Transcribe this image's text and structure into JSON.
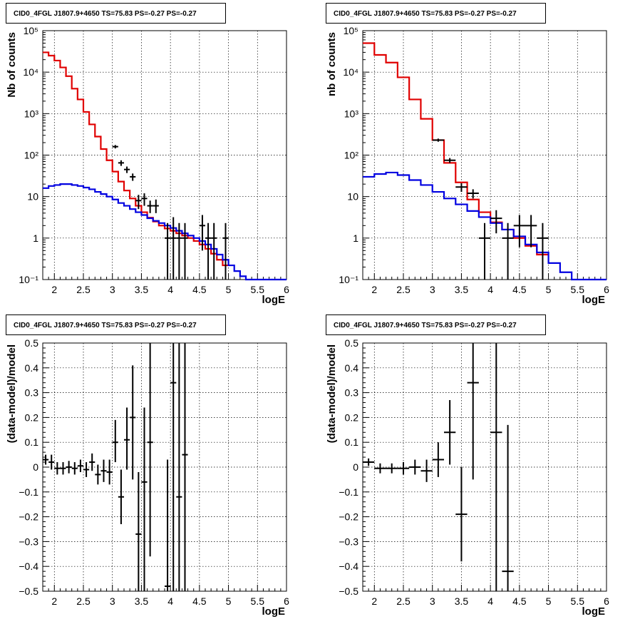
{
  "chart_data": [
    {
      "type": "step",
      "title": "CID0_4FGL J1807.9+4650 TS=75.83 PS=-0.27 PS=-0.27",
      "xlabel": "logE",
      "ylabel": "Nb of counts",
      "xlim": [
        1.8,
        6
      ],
      "ylim": [
        0.1,
        100000
      ],
      "yscale": "log",
      "grid": true,
      "x_ticks": [
        "2",
        "2.5",
        "3",
        "3.5",
        "4",
        "4.5",
        "5",
        "5.5",
        "6"
      ],
      "y_ticks": [
        "10⁻¹",
        "1",
        "10",
        "10²",
        "10³",
        "10⁴",
        "10⁵"
      ],
      "bin_width": 0.1,
      "series": [
        {
          "color": "#e00000",
          "bin_left": [
            1.8,
            1.9,
            2.0,
            2.1,
            2.2,
            2.3,
            2.4,
            2.5,
            2.6,
            2.7,
            2.8,
            2.9,
            3.0,
            3.1,
            3.2,
            3.3,
            3.4,
            3.5,
            3.6,
            3.7,
            3.8,
            3.9,
            4.0,
            4.1,
            4.2,
            4.3,
            4.4,
            4.5,
            4.6,
            4.7,
            4.8,
            4.9
          ],
          "values": [
            30000,
            25000,
            19000,
            13000,
            8000,
            4000,
            2200,
            1100,
            550,
            280,
            140,
            75,
            40,
            23,
            14,
            9,
            6,
            4.2,
            3.1,
            2.5,
            2.0,
            1.7,
            1.5,
            1.3,
            1.15,
            1.0,
            0.85,
            0.7,
            0.55,
            0.42,
            0.3,
            0.22
          ]
        },
        {
          "color": "#0000e0",
          "bin_left": [
            1.8,
            1.9,
            2.0,
            2.1,
            2.2,
            2.3,
            2.4,
            2.5,
            2.6,
            2.7,
            2.8,
            2.9,
            3.0,
            3.1,
            3.2,
            3.3,
            3.4,
            3.5,
            3.6,
            3.7,
            3.8,
            3.9,
            4.0,
            4.1,
            4.2,
            4.3,
            4.4,
            4.5,
            4.6,
            4.7,
            4.8,
            4.9,
            5.0,
            5.1,
            5.2,
            5.3,
            5.4,
            5.5,
            5.6,
            5.7,
            5.8,
            5.9
          ],
          "values": [
            16,
            18,
            19,
            20,
            20,
            19,
            18,
            16.5,
            15,
            13,
            11.5,
            10,
            8.5,
            7,
            6,
            5,
            4.2,
            3.6,
            3.0,
            2.6,
            2.3,
            2.0,
            1.75,
            1.5,
            1.3,
            1.15,
            1.0,
            0.85,
            0.7,
            0.55,
            0.4,
            0.3,
            0.22,
            0.16,
            0.12,
            0.1,
            0.1,
            0.1,
            0.1,
            0.1,
            0.1,
            0.1
          ]
        }
      ],
      "data_points": [
        {
          "x": 3.05,
          "y": 160,
          "xerr": 0.05,
          "ylo": 145,
          "yhi": 175
        },
        {
          "x": 3.15,
          "y": 65,
          "xerr": 0.05,
          "ylo": 55,
          "yhi": 75
        },
        {
          "x": 3.25,
          "y": 45,
          "xerr": 0.05,
          "ylo": 37,
          "yhi": 53
        },
        {
          "x": 3.35,
          "y": 30,
          "xerr": 0.05,
          "ylo": 24,
          "yhi": 36
        },
        {
          "x": 3.45,
          "y": 8,
          "xerr": 0.05,
          "ylo": 5,
          "yhi": 11
        },
        {
          "x": 3.55,
          "y": 9,
          "xerr": 0.05,
          "ylo": 6,
          "yhi": 12
        },
        {
          "x": 3.65,
          "y": 6,
          "xerr": 0.05,
          "ylo": 4,
          "yhi": 8
        },
        {
          "x": 3.75,
          "y": 6,
          "xerr": 0.05,
          "ylo": 4,
          "yhi": 8.5
        },
        {
          "x": 3.95,
          "y": 1,
          "xerr": 0.05,
          "ylo": 0.1,
          "yhi": 2.3
        },
        {
          "x": 4.05,
          "y": 1,
          "xerr": 0.05,
          "ylo": 0.1,
          "yhi": 3.2
        },
        {
          "x": 4.15,
          "y": 1,
          "xerr": 0.05,
          "ylo": 0.1,
          "yhi": 2.3
        },
        {
          "x": 4.25,
          "y": 1,
          "xerr": 0.05,
          "ylo": 0.1,
          "yhi": 2.3
        },
        {
          "x": 4.55,
          "y": 2,
          "xerr": 0.05,
          "ylo": 0.5,
          "yhi": 3.6
        },
        {
          "x": 4.65,
          "y": 1,
          "xerr": 0.05,
          "ylo": 0.1,
          "yhi": 2.3
        },
        {
          "x": 4.75,
          "y": 1,
          "xerr": 0.05,
          "ylo": 0.1,
          "yhi": 2.3
        },
        {
          "x": 4.95,
          "y": 1,
          "xerr": 0.05,
          "ylo": 0.1,
          "yhi": 2.3
        }
      ]
    },
    {
      "type": "step",
      "title": "CID0_4FGL J1807.9+4650 TS=75.83 PS=-0.27 PS=-0.27",
      "xlabel": "logE",
      "ylabel": "nb of counts",
      "xlim": [
        1.8,
        6
      ],
      "ylim": [
        0.1,
        100000
      ],
      "yscale": "log",
      "grid": true,
      "x_ticks": [
        "2",
        "2.5",
        "3",
        "3.5",
        "4",
        "4.5",
        "5",
        "5.5",
        "6"
      ],
      "y_ticks": [
        "10⁻¹",
        "1",
        "10",
        "10²",
        "10³",
        "10⁴",
        "10⁵"
      ],
      "bin_width": 0.2,
      "series": [
        {
          "color": "#e00000",
          "bin_left": [
            1.8,
            2.0,
            2.2,
            2.4,
            2.6,
            2.8,
            3.0,
            3.2,
            3.4,
            3.6,
            3.8,
            4.0,
            4.2,
            4.4,
            4.6,
            4.8
          ],
          "values": [
            50000,
            26000,
            17000,
            7500,
            2200,
            750,
            230,
            65,
            22,
            8.5,
            4.2,
            2.4,
            1.6,
            1.0,
            0.65,
            0.4
          ]
        },
        {
          "color": "#0000e0",
          "bin_left": [
            1.8,
            2.0,
            2.2,
            2.4,
            2.6,
            2.8,
            3.0,
            3.2,
            3.4,
            3.6,
            3.8,
            4.0,
            4.2,
            4.4,
            4.6,
            4.8,
            5.0,
            5.2,
            5.4,
            5.6,
            5.8
          ],
          "values": [
            30,
            35,
            38,
            33,
            25,
            19,
            13,
            9,
            6.5,
            4.5,
            3.2,
            2.3,
            1.6,
            1.1,
            0.7,
            0.45,
            0.25,
            0.15,
            0.1,
            0.1,
            0.1
          ]
        }
      ],
      "data_points": [
        {
          "x": 3.1,
          "y": 230,
          "xerr": 0.1,
          "ylo": 210,
          "yhi": 250
        },
        {
          "x": 3.3,
          "y": 75,
          "xerr": 0.1,
          "ylo": 65,
          "yhi": 85
        },
        {
          "x": 3.5,
          "y": 17,
          "xerr": 0.1,
          "ylo": 13,
          "yhi": 21
        },
        {
          "x": 3.7,
          "y": 12,
          "xerr": 0.1,
          "ylo": 9,
          "yhi": 15
        },
        {
          "x": 3.9,
          "y": 1,
          "xerr": 0.1,
          "ylo": 0.1,
          "yhi": 2.3
        },
        {
          "x": 4.1,
          "y": 3,
          "xerr": 0.1,
          "ylo": 1.3,
          "yhi": 4.7
        },
        {
          "x": 4.3,
          "y": 1,
          "xerr": 0.1,
          "ylo": 0.1,
          "yhi": 2.3
        },
        {
          "x": 4.5,
          "y": 2,
          "xerr": 0.1,
          "ylo": 0.6,
          "yhi": 3.6
        },
        {
          "x": 4.7,
          "y": 2,
          "xerr": 0.1,
          "ylo": 0.6,
          "yhi": 3.6
        },
        {
          "x": 4.9,
          "y": 1,
          "xerr": 0.1,
          "ylo": 0.1,
          "yhi": 2.3
        }
      ]
    },
    {
      "type": "scatter",
      "title": "CID0_4FGL J1807.9+4650 TS=75.83 PS=-0.27 PS=-0.27",
      "xlabel": "logE",
      "ylabel": "(data-model)/model",
      "xlim": [
        1.8,
        6
      ],
      "ylim": [
        -0.5,
        0.5
      ],
      "grid": true,
      "x_ticks": [
        "2",
        "2.5",
        "3",
        "3.5",
        "4",
        "4.5",
        "5",
        "5.5",
        "6"
      ],
      "y_ticks": [
        "−0.5",
        "−0.4",
        "−0.3",
        "−0.2",
        "−0.1",
        "0",
        "0.1",
        "0.2",
        "0.3",
        "0.4",
        "0.5"
      ],
      "data_points": [
        {
          "x": 1.85,
          "y": 0.03,
          "xerr": 0.05,
          "ylo": 0.01,
          "yhi": 0.05
        },
        {
          "x": 1.95,
          "y": 0.02,
          "xerr": 0.05,
          "ylo": -0.01,
          "yhi": 0.05
        },
        {
          "x": 2.05,
          "y": -0.005,
          "xerr": 0.05,
          "ylo": -0.03,
          "yhi": 0.02
        },
        {
          "x": 2.15,
          "y": -0.005,
          "xerr": 0.05,
          "ylo": -0.03,
          "yhi": 0.02
        },
        {
          "x": 2.25,
          "y": 0.0,
          "xerr": 0.05,
          "ylo": -0.025,
          "yhi": 0.025
        },
        {
          "x": 2.35,
          "y": -0.005,
          "xerr": 0.05,
          "ylo": -0.03,
          "yhi": 0.02
        },
        {
          "x": 2.45,
          "y": 0.005,
          "xerr": 0.05,
          "ylo": -0.02,
          "yhi": 0.03
        },
        {
          "x": 2.55,
          "y": -0.01,
          "xerr": 0.05,
          "ylo": -0.04,
          "yhi": 0.02
        },
        {
          "x": 2.65,
          "y": 0.02,
          "xerr": 0.05,
          "ylo": -0.015,
          "yhi": 0.055
        },
        {
          "x": 2.75,
          "y": -0.03,
          "xerr": 0.05,
          "ylo": -0.07,
          "yhi": 0.01
        },
        {
          "x": 2.85,
          "y": -0.015,
          "xerr": 0.05,
          "ylo": -0.06,
          "yhi": 0.03
        },
        {
          "x": 2.95,
          "y": -0.02,
          "xerr": 0.05,
          "ylo": -0.07,
          "yhi": 0.03
        },
        {
          "x": 3.05,
          "y": 0.1,
          "xerr": 0.05,
          "ylo": 0.02,
          "yhi": 0.19
        },
        {
          "x": 3.15,
          "y": -0.12,
          "xerr": 0.05,
          "ylo": -0.23,
          "yhi": -0.01
        },
        {
          "x": 3.25,
          "y": 0.11,
          "xerr": 0.05,
          "ylo": -0.01,
          "yhi": 0.24
        },
        {
          "x": 3.35,
          "y": 0.2,
          "xerr": 0.05,
          "ylo": -0.05,
          "yhi": 0.41
        },
        {
          "x": 3.45,
          "y": -0.27,
          "xerr": 0.05,
          "ylo": -0.5,
          "yhi": -0.02
        },
        {
          "x": 3.55,
          "y": -0.06,
          "xerr": 0.05,
          "ylo": -0.5,
          "yhi": 0.24
        },
        {
          "x": 3.65,
          "y": 0.1,
          "xerr": 0.05,
          "ylo": -0.36,
          "yhi": 0.5
        },
        {
          "x": 3.95,
          "y": -0.48,
          "xerr": 0.05,
          "ylo": -0.5,
          "yhi": 0.03
        },
        {
          "x": 4.05,
          "y": 0.34,
          "xerr": 0.05,
          "ylo": -0.5,
          "yhi": 0.5
        },
        {
          "x": 4.15,
          "y": -0.12,
          "xerr": 0.05,
          "ylo": -0.5,
          "yhi": 0.5
        },
        {
          "x": 4.25,
          "y": 0.05,
          "xerr": 0.05,
          "ylo": -0.5,
          "yhi": 0.5
        }
      ]
    },
    {
      "type": "scatter",
      "title": "CID0_4FGL J1807.9+4650 TS=75.83 PS=-0.27 PS=-0.27",
      "xlabel": "logE",
      "ylabel": "(data-model)/model",
      "xlim": [
        1.8,
        6
      ],
      "ylim": [
        -0.5,
        0.5
      ],
      "grid": true,
      "x_ticks": [
        "2",
        "2.5",
        "3",
        "3.5",
        "4",
        "4.5",
        "5",
        "5.5",
        "6"
      ],
      "y_ticks": [
        "−0.5",
        "−0.4",
        "−0.3",
        "−0.2",
        "−0.1",
        "0",
        "0.1",
        "0.2",
        "0.3",
        "0.4",
        "0.5"
      ],
      "data_points": [
        {
          "x": 1.9,
          "y": 0.02,
          "xerr": 0.1,
          "ylo": 0.005,
          "yhi": 0.035
        },
        {
          "x": 2.1,
          "y": -0.005,
          "xerr": 0.1,
          "ylo": -0.025,
          "yhi": 0.015
        },
        {
          "x": 2.3,
          "y": -0.005,
          "xerr": 0.1,
          "ylo": -0.025,
          "yhi": 0.015
        },
        {
          "x": 2.5,
          "y": -0.005,
          "xerr": 0.1,
          "ylo": -0.03,
          "yhi": 0.02
        },
        {
          "x": 2.7,
          "y": 0.0,
          "xerr": 0.1,
          "ylo": -0.03,
          "yhi": 0.03
        },
        {
          "x": 2.9,
          "y": -0.015,
          "xerr": 0.1,
          "ylo": -0.06,
          "yhi": 0.03
        },
        {
          "x": 3.1,
          "y": 0.03,
          "xerr": 0.1,
          "ylo": -0.04,
          "yhi": 0.1
        },
        {
          "x": 3.3,
          "y": 0.14,
          "xerr": 0.1,
          "ylo": 0.01,
          "yhi": 0.27
        },
        {
          "x": 3.5,
          "y": -0.19,
          "xerr": 0.1,
          "ylo": -0.38,
          "yhi": 0.0
        },
        {
          "x": 3.7,
          "y": 0.34,
          "xerr": 0.1,
          "ylo": -0.05,
          "yhi": 0.5
        },
        {
          "x": 4.1,
          "y": 0.14,
          "xerr": 0.1,
          "ylo": -0.5,
          "yhi": 0.5
        },
        {
          "x": 4.3,
          "y": -0.42,
          "xerr": 0.1,
          "ylo": -0.5,
          "yhi": 0.17
        }
      ]
    }
  ]
}
